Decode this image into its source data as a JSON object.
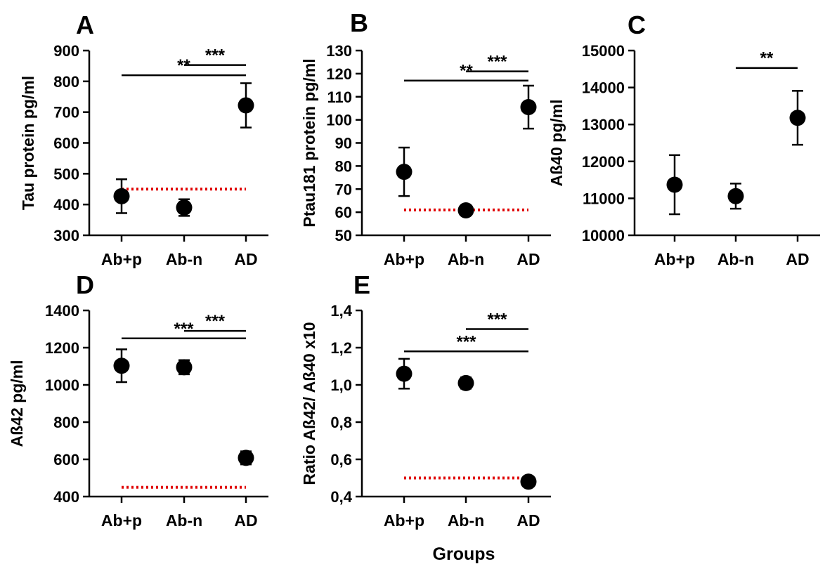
{
  "x_axis_title": "Groups",
  "colors": {
    "marker": "#000000",
    "reference_line": "#e00000"
  },
  "chart_data": [
    {
      "panel": "A",
      "type": "scatter",
      "categories": [
        "Ab+p",
        "Ab-n",
        "AD"
      ],
      "series": [
        {
          "values": [
            427,
            390,
            722
          ],
          "error": [
            55,
            27,
            72
          ]
        }
      ],
      "ylabel": "Tau protein pg/ml",
      "ylim": [
        300,
        900
      ],
      "yticks": [
        300,
        400,
        500,
        600,
        700,
        800,
        900
      ],
      "reference_line": {
        "value": 450,
        "from": "Ab+p",
        "to": "AD",
        "style": "dotted",
        "color": "#e00000"
      },
      "significance": [
        {
          "from": "Ab+p",
          "to": "AD",
          "y": 820,
          "label": "**"
        },
        {
          "from": "Ab-n",
          "to": "AD",
          "y": 853,
          "label": "***"
        }
      ]
    },
    {
      "panel": "B",
      "type": "scatter",
      "categories": [
        "Ab+p",
        "Ab-n",
        "AD"
      ],
      "series": [
        {
          "values": [
            77.5,
            60.8,
            105.5
          ],
          "error": [
            10.5,
            1.7,
            9.3
          ]
        }
      ],
      "ylabel": "Ptau181 protein pg/ml",
      "ylim": [
        50,
        130
      ],
      "yticks": [
        50,
        60,
        70,
        80,
        90,
        100,
        110,
        120,
        130
      ],
      "reference_line": {
        "value": 61,
        "from": "Ab+p",
        "to": "AD",
        "style": "dotted",
        "color": "#e00000"
      },
      "significance": [
        {
          "from": "Ab+p",
          "to": "AD",
          "y": 117,
          "label": "**"
        },
        {
          "from": "Ab-n",
          "to": "AD",
          "y": 121,
          "label": "***"
        }
      ]
    },
    {
      "panel": "C",
      "type": "scatter",
      "categories": [
        "Ab+p",
        "Ab-n",
        "AD"
      ],
      "series": [
        {
          "values": [
            11370,
            11060,
            13180
          ],
          "error": [
            800,
            340,
            730
          ]
        }
      ],
      "ylabel": "Aß40 pg/ml",
      "ylim": [
        10000,
        15000
      ],
      "yticks": [
        10000,
        11000,
        12000,
        13000,
        14000,
        15000
      ],
      "significance": [
        {
          "from": "Ab-n",
          "to": "AD",
          "y": 14530,
          "label": "**"
        }
      ]
    },
    {
      "panel": "D",
      "type": "scatter",
      "categories": [
        "Ab+p",
        "Ab-n",
        "AD"
      ],
      "series": [
        {
          "values": [
            1103,
            1095,
            608
          ],
          "error": [
            88,
            38,
            35
          ]
        }
      ],
      "ylabel": "Aß42 pg/ml",
      "ylim": [
        400,
        1400
      ],
      "yticks": [
        400,
        600,
        800,
        1000,
        1200,
        1400
      ],
      "reference_line": {
        "value": 450,
        "from": "Ab+p",
        "to": "AD",
        "style": "dotted",
        "color": "#e00000"
      },
      "significance": [
        {
          "from": "Ab+p",
          "to": "AD",
          "y": 1250,
          "label": "***"
        },
        {
          "from": "Ab-n",
          "to": "AD",
          "y": 1290,
          "label": "***"
        }
      ]
    },
    {
      "panel": "E",
      "type": "scatter",
      "categories": [
        "Ab+p",
        "Ab-n",
        "AD"
      ],
      "series": [
        {
          "values": [
            1.06,
            1.01,
            0.48
          ],
          "error": [
            0.08,
            0.03,
            0.01
          ]
        }
      ],
      "ylabel": "Ratio Aß42/ Aß40 x10",
      "ylim": [
        0.4,
        1.4
      ],
      "yticks": [
        "0,4",
        "0,6",
        "0,8",
        "1,0",
        "1,2",
        "1,4"
      ],
      "reference_line": {
        "value": 0.5,
        "from": "Ab+p",
        "to": "AD",
        "style": "dotted",
        "color": "#e00000"
      },
      "significance": [
        {
          "from": "Ab+p",
          "to": "AD",
          "y": 1.18,
          "label": "***"
        },
        {
          "from": "Ab-n",
          "to": "AD",
          "y": 1.3,
          "label": "***"
        }
      ]
    }
  ]
}
